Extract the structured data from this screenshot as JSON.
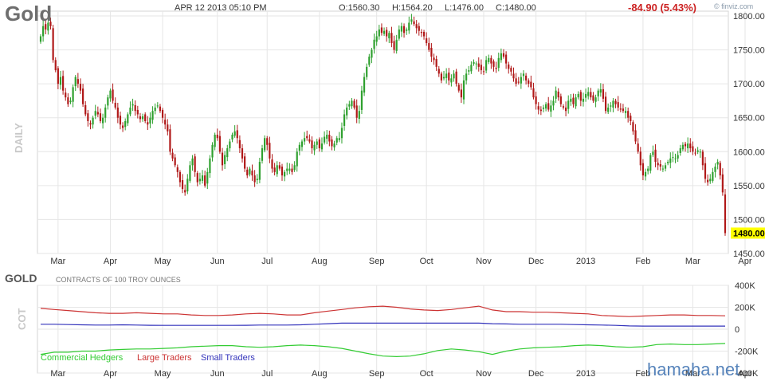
{
  "header": {
    "title": "Gold",
    "datetime": "APR 12 2013 05:10 PM",
    "open": "O:1560.30",
    "high": "H:1564.20",
    "low": "L:1476.00",
    "close": "C:1480.00",
    "change": "-84.90 (5.43%)",
    "brand": "© finviz.com"
  },
  "panel_labels": {
    "price": "DAILY",
    "cot_title": "GOLD",
    "cot_subtitle": "CONTRACTS OF 100 TROY OUNCES",
    "cot": "COT"
  },
  "watermark": "hamaha.net",
  "colors": {
    "up": "#2ea02e",
    "down": "#b01818",
    "commercial": "#33cc33",
    "large": "#cc3333",
    "small": "#3333bb",
    "last_price_bg": "#ffff00",
    "grid": "#e6e6e6"
  },
  "chart_data": [
    {
      "type": "candlestick",
      "title": "Gold",
      "ylim": [
        1450,
        1800
      ],
      "y_ticks": [
        "1800.00",
        "1750.00",
        "1700.00",
        "1650.00",
        "1600.00",
        "1550.00",
        "1500.00",
        "1450.00"
      ],
      "y_tick_values": [
        1800,
        1750,
        1700,
        1650,
        1600,
        1550,
        1500,
        1450
      ],
      "last_price": "1480.00",
      "months": [
        {
          "label": "Mar",
          "index": 7
        },
        {
          "label": "Apr",
          "index": 28
        },
        {
          "label": "May",
          "index": 49
        },
        {
          "label": "Jun",
          "index": 71
        },
        {
          "label": "Jul",
          "index": 91
        },
        {
          "label": "Aug",
          "index": 112
        },
        {
          "label": "Sep",
          "index": 135
        },
        {
          "label": "Oct",
          "index": 155
        },
        {
          "label": "Nov",
          "index": 178
        },
        {
          "label": "Dec",
          "index": 199
        },
        {
          "label": "2013",
          "index": 219
        },
        {
          "label": "Feb",
          "index": 242
        },
        {
          "label": "Mar",
          "index": 262
        },
        {
          "label": "Apr",
          "index": 283
        }
      ],
      "closes": [
        1770,
        1785,
        1780,
        1790,
        1785,
        1735,
        1720,
        1700,
        1710,
        1690,
        1680,
        1670,
        1675,
        1695,
        1710,
        1700,
        1690,
        1670,
        1655,
        1645,
        1640,
        1650,
        1660,
        1655,
        1645,
        1650,
        1665,
        1680,
        1690,
        1675,
        1665,
        1650,
        1640,
        1635,
        1645,
        1655,
        1665,
        1670,
        1660,
        1655,
        1648,
        1652,
        1645,
        1640,
        1650,
        1660,
        1665,
        1668,
        1660,
        1650,
        1640,
        1630,
        1600,
        1590,
        1580,
        1570,
        1555,
        1545,
        1540,
        1560,
        1580,
        1590,
        1570,
        1555,
        1560,
        1565,
        1550,
        1570,
        1590,
        1610,
        1625,
        1620,
        1600,
        1580,
        1595,
        1605,
        1615,
        1625,
        1630,
        1620,
        1605,
        1590,
        1575,
        1565,
        1575,
        1565,
        1555,
        1560,
        1585,
        1605,
        1620,
        1610,
        1590,
        1575,
        1570,
        1580,
        1575,
        1565,
        1570,
        1575,
        1575,
        1570,
        1580,
        1600,
        1610,
        1615,
        1620,
        1620,
        1615,
        1605,
        1610,
        1615,
        1605,
        1612,
        1622,
        1625,
        1615,
        1608,
        1612,
        1620,
        1620,
        1635,
        1655,
        1665,
        1670,
        1675,
        1665,
        1650,
        1660,
        1690,
        1710,
        1725,
        1740,
        1750,
        1765,
        1770,
        1780,
        1775,
        1778,
        1770,
        1775,
        1760,
        1750,
        1765,
        1780,
        1785,
        1775,
        1780,
        1790,
        1795,
        1788,
        1782,
        1778,
        1775,
        1770,
        1760,
        1750,
        1740,
        1735,
        1725,
        1715,
        1705,
        1710,
        1715,
        1705,
        1708,
        1715,
        1700,
        1690,
        1680,
        1705,
        1715,
        1720,
        1728,
        1732,
        1730,
        1725,
        1720,
        1718,
        1735,
        1738,
        1730,
        1725,
        1722,
        1738,
        1745,
        1740,
        1730,
        1722,
        1718,
        1708,
        1700,
        1702,
        1710,
        1715,
        1705,
        1700,
        1695,
        1680,
        1670,
        1662,
        1660,
        1665,
        1670,
        1662,
        1668,
        1675,
        1690,
        1680,
        1670,
        1665,
        1660,
        1675,
        1678,
        1670,
        1680,
        1685,
        1675,
        1678,
        1685,
        1688,
        1680,
        1675,
        1680,
        1690,
        1692,
        1678,
        1660,
        1665,
        1668,
        1675,
        1670,
        1665,
        1662,
        1660,
        1660,
        1650,
        1645,
        1630,
        1615,
        1600,
        1580,
        1565,
        1570,
        1575,
        1595,
        1600,
        1585,
        1580,
        1578,
        1575,
        1580,
        1585,
        1590,
        1592,
        1590,
        1595,
        1605,
        1610,
        1608,
        1612,
        1605,
        1600,
        1598,
        1602,
        1600,
        1580,
        1560,
        1555,
        1560,
        1570,
        1578,
        1585,
        1565,
        1540,
        1480
      ]
    },
    {
      "type": "line",
      "title": "GOLD",
      "subtitle": "CONTRACTS OF 100 TROY OUNCES",
      "ylim": [
        -400000,
        400000
      ],
      "y_ticks": [
        "400K",
        "200K",
        "0",
        "-200K",
        "-400K"
      ],
      "y_tick_values": [
        400000,
        200000,
        0,
        -200000,
        -400000
      ],
      "series": [
        {
          "name": "Commercial Hedgers",
          "values": [
            -230000,
            -210000,
            -210000,
            -200000,
            -200000,
            -190000,
            -185000,
            -180000,
            -180000,
            -175000,
            -170000,
            -160000,
            -155000,
            -150000,
            -150000,
            -160000,
            -165000,
            -160000,
            -150000,
            -145000,
            -150000,
            -160000,
            -175000,
            -200000,
            -225000,
            -245000,
            -250000,
            -245000,
            -225000,
            -195000,
            -180000,
            -190000,
            -205000,
            -230000,
            -200000,
            -180000,
            -170000,
            -165000,
            -160000,
            -150000,
            -145000,
            -150000,
            -160000,
            -165000,
            -160000,
            -140000,
            -135000,
            -140000,
            -140000,
            -135000,
            -130000
          ]
        },
        {
          "name": "Large Traders",
          "values": [
            190000,
            180000,
            170000,
            160000,
            150000,
            145000,
            145000,
            150000,
            145000,
            140000,
            140000,
            130000,
            125000,
            125000,
            130000,
            140000,
            145000,
            140000,
            130000,
            130000,
            150000,
            165000,
            180000,
            195000,
            205000,
            210000,
            200000,
            185000,
            175000,
            170000,
            180000,
            195000,
            210000,
            175000,
            160000,
            160000,
            155000,
            155000,
            150000,
            145000,
            140000,
            125000,
            120000,
            115000,
            120000,
            125000,
            130000,
            130000,
            125000,
            125000,
            122000
          ]
        },
        {
          "name": "Small Traders",
          "values": [
            45000,
            45000,
            42000,
            40000,
            38000,
            38000,
            40000,
            38000,
            36000,
            35000,
            35000,
            35000,
            35000,
            35000,
            35000,
            36000,
            38000,
            38000,
            38000,
            40000,
            45000,
            50000,
            55000,
            55000,
            55000,
            55000,
            55000,
            55000,
            55000,
            55000,
            55000,
            55000,
            55000,
            50000,
            48000,
            45000,
            45000,
            45000,
            45000,
            42000,
            40000,
            38000,
            35000,
            30000,
            28000,
            28000,
            28000,
            28000,
            28000,
            28000,
            28000
          ]
        }
      ]
    }
  ]
}
